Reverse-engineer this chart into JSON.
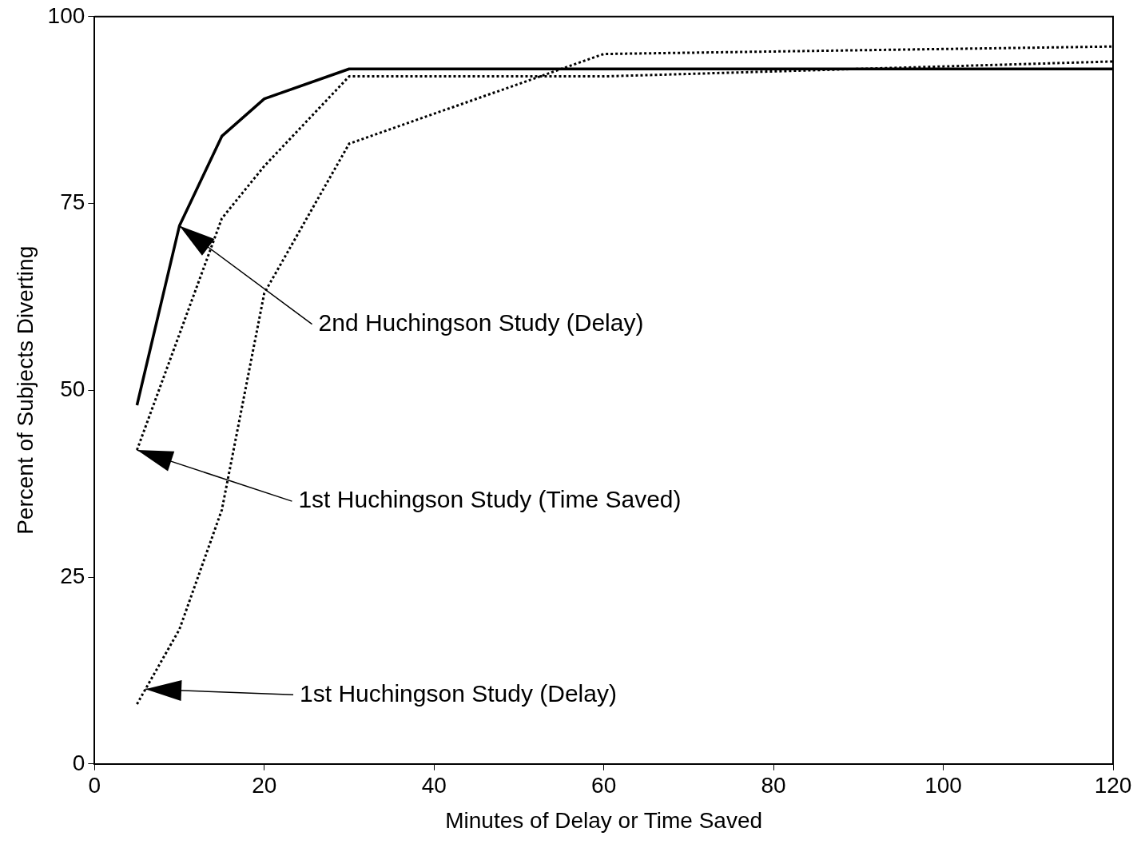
{
  "chart_data": {
    "type": "line",
    "xlabel": "Minutes of Delay or Time Saved",
    "ylabel": "Percent of Subjects Diverting",
    "xlim": [
      0,
      120
    ],
    "xticks": [
      0,
      20,
      40,
      60,
      80,
      100,
      120
    ],
    "ylim": [
      0,
      100
    ],
    "yticks": [
      0,
      25,
      50,
      75,
      100
    ],
    "grid": false,
    "legend": false,
    "marker": "none",
    "series": [
      {
        "color": "#000000",
        "line_style": "solid",
        "x": [
          5,
          10,
          15,
          20,
          30,
          120
        ],
        "values": [
          48,
          72,
          84,
          89,
          93,
          93
        ]
      },
      {
        "color": "#000000",
        "line_style": "dotted",
        "x": [
          5,
          15,
          20,
          30,
          60,
          120
        ],
        "values": [
          42,
          73,
          80,
          92,
          92,
          94
        ]
      },
      {
        "color": "#000000",
        "line_style": "dotted",
        "x": [
          5,
          10,
          15,
          20,
          30,
          60,
          120
        ],
        "values": [
          8,
          18,
          34,
          63,
          83,
          95,
          96
        ]
      }
    ],
    "annotations": [
      {
        "text": "2nd Huchingson Study (Delay)",
        "x": 10,
        "y": 72
      },
      {
        "text": "1st Huchingson Study (Time Saved)",
        "x": 5,
        "y": 42
      },
      {
        "text": "1st Huchingson Study (Delay)",
        "x": 6,
        "y": 10
      }
    ]
  }
}
